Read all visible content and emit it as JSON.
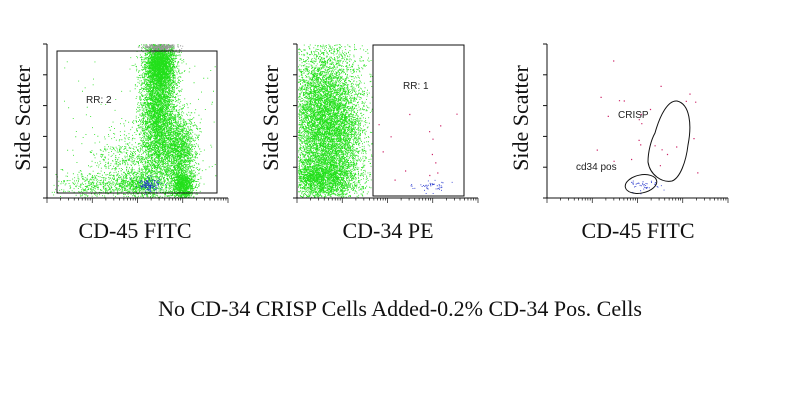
{
  "chart_data": [
    {
      "type": "scatter",
      "xlabel": "CD-45 FITC",
      "ylabel": "Side Scatter",
      "log_x": true,
      "gates": [
        {
          "label": "RR: 2",
          "shape": "rectangle"
        }
      ],
      "series_colors": {
        "green": "#22e01a",
        "blue": "#2233cc",
        "gray": "#999999"
      }
    },
    {
      "type": "scatter",
      "xlabel": "CD-34 PE",
      "ylabel": "Side Scatter",
      "log_x": true,
      "gates": [
        {
          "label": "RR: 1",
          "shape": "rectangle"
        }
      ],
      "series_colors": {
        "green": "#22e01a",
        "blue": "#2233cc",
        "magenta": "#cc2266"
      }
    },
    {
      "type": "scatter",
      "xlabel": "CD-45 FITC",
      "ylabel": "Side Scatter",
      "log_x": true,
      "gates": [
        {
          "label": "CRISP",
          "shape": "polygon"
        },
        {
          "label": "cd34 pos",
          "shape": "ellipse"
        }
      ],
      "series_colors": {
        "blue": "#2233cc",
        "magenta": "#cc2266"
      }
    }
  ],
  "caption": "No CD-34 CRISP Cells Added-0.2% CD-34 Pos. Cells"
}
